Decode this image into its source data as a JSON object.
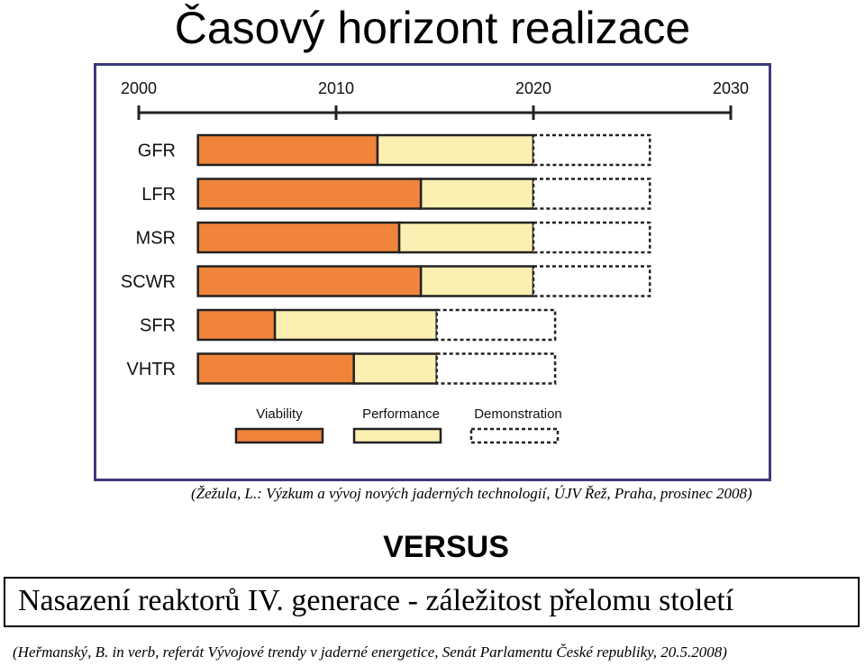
{
  "title": "Časový horizont realizace",
  "colors": {
    "viability": "#f0843a",
    "performance": "#fbefb2",
    "demonstration": "#ffffff",
    "bar_stroke": "#222222",
    "frame": "#3b3b7a"
  },
  "chart_data": {
    "type": "bar",
    "orientation": "horizontal-stacked",
    "timeline_ticks": [
      "2000",
      "2010",
      "2020",
      "2030"
    ],
    "xlim": [
      2000,
      2030
    ],
    "categories": [
      "GFR",
      "LFR",
      "MSR",
      "SCWR",
      "SFR",
      "VHTR"
    ],
    "series": [
      {
        "name": "Viability",
        "starts": [
          2003,
          2003,
          2003,
          2003,
          2003,
          2003
        ],
        "ends": [
          2012.1,
          2014.3,
          2013.2,
          2014.3,
          2006.9,
          2010.9
        ]
      },
      {
        "name": "Performance",
        "starts": [
          2012.1,
          2014.3,
          2013.2,
          2014.3,
          2006.9,
          2010.9
        ],
        "ends": [
          2020,
          2020,
          2020,
          2020,
          2015.1,
          2015.1
        ]
      },
      {
        "name": "Demonstration",
        "starts": [
          2020,
          2020,
          2020,
          2020,
          2015.1,
          2015.1
        ],
        "ends": [
          2025.9,
          2025.9,
          2025.9,
          2025.9,
          2021.1,
          2021.1
        ]
      }
    ],
    "legend": [
      "Viability",
      "Performance",
      "Demonstration"
    ],
    "legend_position": "bottom"
  },
  "citation_top": "(Žežula, L.: Výzkum a vývoj nových jaderných technologií, ÚJV Řež, Praha, prosinec 2008)",
  "versus": "VERSUS",
  "statement": "Nasazení reaktorů IV. generace - záležitost přelomu století",
  "citation_bottom": "(Heřmanský, B. in verb, referát Vývojové trendy v jaderné energetice, Senát Parlamentu České republiky, 20.5.2008)"
}
